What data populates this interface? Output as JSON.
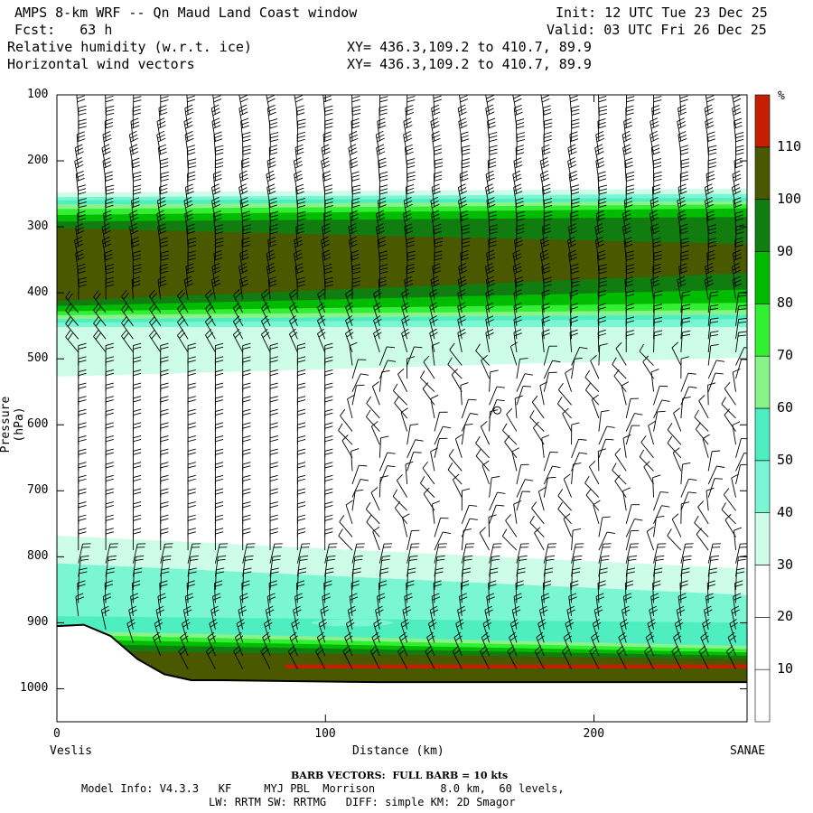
{
  "header": {
    "title_left": "AMPS 8-km WRF -- Qn Maud Land Coast window",
    "fcst": "Fcst:   63 h",
    "field1": "Relative humidity (w.r.t. ice)",
    "field2": "Horizontal wind vectors",
    "xy1": "XY= 436.3,109.2 to 410.7, 89.9",
    "xy2": "XY= 436.3,109.2 to 410.7, 89.9",
    "init": "Init: 12 UTC Tue 23 Dec 25",
    "valid": "Valid: 03 UTC Fri 26 Dec 25"
  },
  "footer": {
    "barb_note": "BARB VECTORS:  FULL BARB = 10 kts",
    "model_line1": "Model Info: V4.3.3   KF     MYJ PBL  Morrison          8.0 km,  60 levels,",
    "model_line2": "LW: RRTM SW: RRTMG   DIFF: simple KM: 2D Smagor"
  },
  "chart_data": {
    "type": "heatmap",
    "ylabel": "Pressure (hPa)",
    "xlabel": "Distance (km)",
    "x_left_label": "Veslis",
    "x_right_label": "SANAE",
    "xlim": [
      0,
      257
    ],
    "ylim": [
      100,
      1050
    ],
    "y_ticks": [
      "100",
      "200",
      "300",
      "400",
      "500",
      "600",
      "700",
      "800",
      "900",
      "1000"
    ],
    "x_ticks": [
      "0",
      "100",
      "200"
    ],
    "colorbar": {
      "unit": "%",
      "levels": [
        "10",
        "20",
        "30",
        "40",
        "50",
        "60",
        "70",
        "80",
        "90",
        "100",
        "110"
      ],
      "colors": [
        "#ffffff",
        "#ffffff",
        "#ffffff",
        "#cdfce9",
        "#7af6d3",
        "#4eeec0",
        "#8af28a",
        "#33ef33",
        "#00bb00",
        "#117d11",
        "#4a5800",
        "#c41f00"
      ]
    },
    "rh_layers": [
      {
        "range_pct": "30-40",
        "p_top_left": 460,
        "p_top_right": 455,
        "p_bot_left": 525,
        "p_bot_right": 500
      },
      {
        "range_pct": "40-100",
        "p_top_left": 250,
        "p_top_right": 245,
        "p_bot_left": 460,
        "p_bot_right": 460
      },
      {
        "range_pct": "30-100",
        "p_top_left": 770,
        "p_top_right": 815,
        "p_bot_left": 980,
        "p_bot_right": 985
      }
    ],
    "terrain_surface_pressure": [
      {
        "x": 0,
        "p": 905
      },
      {
        "x": 10,
        "p": 903
      },
      {
        "x": 20,
        "p": 920
      },
      {
        "x": 30,
        "p": 955
      },
      {
        "x": 40,
        "p": 978
      },
      {
        "x": 50,
        "p": 987
      },
      {
        "x": 60,
        "p": 987
      },
      {
        "x": 80,
        "p": 988
      },
      {
        "x": 120,
        "p": 990
      },
      {
        "x": 200,
        "p": 990
      },
      {
        "x": 257,
        "p": 990
      }
    ],
    "barb_vectors": "full barb = 10 kts"
  }
}
